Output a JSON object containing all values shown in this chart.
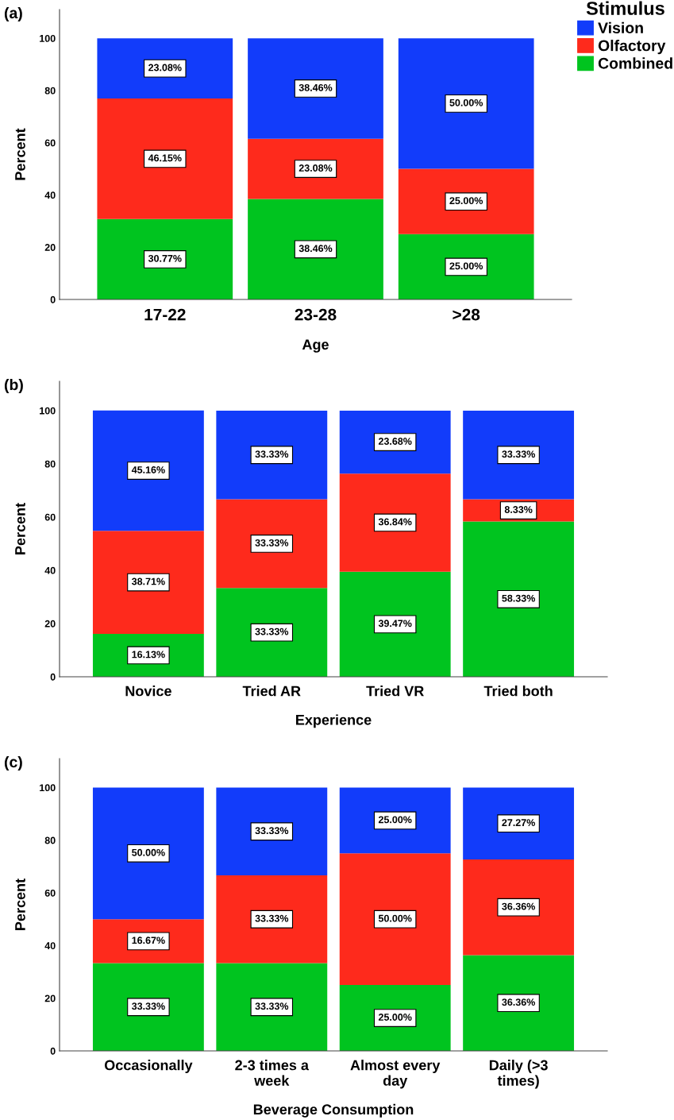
{
  "chart_data": [
    {
      "type": "bar",
      "stacked": true,
      "xlabel": "Age",
      "ylabel": "Percent",
      "legend_title": "Stimulus",
      "legend": "top right",
      "annotations": [
        "(a)"
      ],
      "categories": [
        "17-22",
        "23-28",
        ">28"
      ],
      "ylim": [
        0,
        111
      ],
      "yticks": [
        0,
        20,
        40,
        60,
        80,
        100
      ],
      "grid": false,
      "series": [
        {
          "name": "Combined",
          "color": "#00c41f",
          "values": [
            30.77,
            38.46,
            25.0
          ],
          "value_labels": [
            "30.77%",
            "38.46%",
            "25.00%"
          ]
        },
        {
          "name": "Olfactory",
          "color": "#fe2a1c",
          "values": [
            46.15,
            23.08,
            25.0
          ],
          "value_labels": [
            "46.15%",
            "23.08%",
            "25.00%"
          ]
        },
        {
          "name": "Vision",
          "color": "#123cfa",
          "values": [
            23.08,
            38.46,
            50.0
          ],
          "value_labels": [
            "23.08%",
            "38.46%",
            "50.00%"
          ]
        }
      ]
    },
    {
      "type": "bar",
      "stacked": true,
      "xlabel": "Experience",
      "ylabel": "Percent",
      "annotations": [
        "(b)"
      ],
      "categories": [
        "Novice",
        "Tried AR",
        "Tried VR",
        "Tried both"
      ],
      "ylim": [
        0,
        111
      ],
      "yticks": [
        0,
        20,
        40,
        60,
        80,
        100
      ],
      "grid": false,
      "series": [
        {
          "color": "#00c41f",
          "values": [
            16.13,
            33.33,
            39.47,
            58.33
          ],
          "value_labels": [
            "16.13%",
            "33.33%",
            "39.47%",
            "58.33%"
          ]
        },
        {
          "color": "#fe2a1c",
          "values": [
            38.71,
            33.33,
            36.84,
            8.33
          ],
          "value_labels": [
            "38.71%",
            "33.33%",
            "36.84%",
            "8.33%"
          ]
        },
        {
          "color": "#123cfa",
          "values": [
            45.16,
            33.33,
            23.68,
            33.33
          ],
          "value_labels": [
            "45.16%",
            "33.33%",
            "23.68%",
            "33.33%"
          ]
        }
      ]
    },
    {
      "type": "bar",
      "stacked": true,
      "xlabel": "Beverage Consumption",
      "ylabel": "Percent",
      "annotations": [
        "(c)"
      ],
      "categories": [
        "Occasionally",
        "2-3 times a\nweek",
        "Almost every\nday",
        "Daily (>3\ntimes)"
      ],
      "ylim": [
        0,
        111
      ],
      "yticks": [
        0,
        20,
        40,
        60,
        80,
        100
      ],
      "grid": false,
      "series": [
        {
          "color": "#00c41f",
          "values": [
            33.33,
            33.33,
            25.0,
            36.36
          ],
          "value_labels": [
            "33.33%",
            "33.33%",
            "25.00%",
            "36.36%"
          ]
        },
        {
          "color": "#fe2a1c",
          "values": [
            16.67,
            33.33,
            50.0,
            36.36
          ],
          "value_labels": [
            "16.67%",
            "33.33%",
            "50.00%",
            "36.36%"
          ]
        },
        {
          "color": "#123cfa",
          "values": [
            50.0,
            33.33,
            25.0,
            27.27
          ],
          "value_labels": [
            "50.00%",
            "33.33%",
            "25.00%",
            "27.27%"
          ]
        }
      ]
    }
  ]
}
